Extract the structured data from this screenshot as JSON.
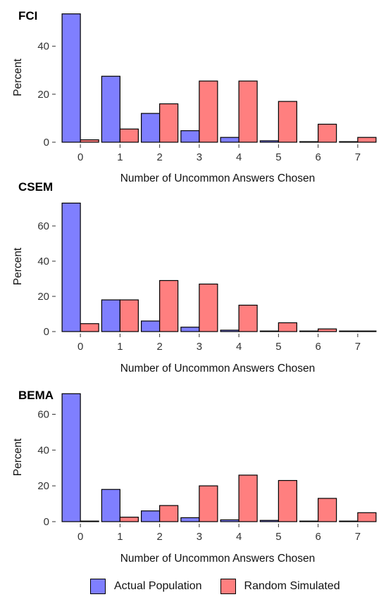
{
  "chart_data": [
    {
      "type": "bar",
      "title": "FCI",
      "xlabel": "Number of Uncommon Answers Chosen",
      "ylabel": "Percent",
      "categories": [
        "0",
        "1",
        "2",
        "3",
        "4",
        "5",
        "6",
        "7"
      ],
      "ylim": [
        0,
        54
      ],
      "yticks": [
        0,
        20,
        40
      ],
      "series": [
        {
          "name": "Actual Population",
          "color": "#7f7fff",
          "values": [
            53.5,
            27.5,
            12,
            4.8,
            2,
            0.6,
            0.2,
            0.1
          ]
        },
        {
          "name": "Random Simulated",
          "color": "#ff7f7f",
          "values": [
            1,
            5.5,
            16,
            25.5,
            25.5,
            17,
            7.5,
            2
          ]
        }
      ]
    },
    {
      "type": "bar",
      "title": "CSEM",
      "xlabel": "Number of Uncommon Answers Chosen",
      "ylabel": "Percent",
      "categories": [
        "0",
        "1",
        "2",
        "3",
        "4",
        "5",
        "6",
        "7"
      ],
      "ylim": [
        0,
        74
      ],
      "yticks": [
        0,
        20,
        40,
        60
      ],
      "series": [
        {
          "name": "Actual Population",
          "color": "#7f7fff",
          "values": [
            73,
            18,
            6,
            2.5,
            0.8,
            0.2,
            0.1,
            0.05
          ]
        },
        {
          "name": "Random Simulated",
          "color": "#ff7f7f",
          "values": [
            4.5,
            18,
            29,
            27,
            15,
            5,
            1.5,
            0.3
          ]
        }
      ]
    },
    {
      "type": "bar",
      "title": "BEMA",
      "xlabel": "Number of Uncommon Answers Chosen",
      "ylabel": "Percent",
      "categories": [
        "0",
        "1",
        "2",
        "3",
        "4",
        "5",
        "6",
        "7"
      ],
      "ylim": [
        0,
        72
      ],
      "yticks": [
        0,
        20,
        40,
        60
      ],
      "series": [
        {
          "name": "Actual Population",
          "color": "#7f7fff",
          "values": [
            71.5,
            18,
            6,
            2.2,
            1,
            0.7,
            0.1,
            0.05
          ]
        },
        {
          "name": "Random Simulated",
          "color": "#ff7f7f",
          "values": [
            0.3,
            2.5,
            9,
            20,
            26,
            23,
            13,
            5
          ]
        }
      ]
    }
  ],
  "legend": {
    "placement": "bottom",
    "items": [
      {
        "label": "Actual Population",
        "color": "#7f7fff"
      },
      {
        "label": "Random Simulated",
        "color": "#ff7f7f"
      }
    ]
  }
}
